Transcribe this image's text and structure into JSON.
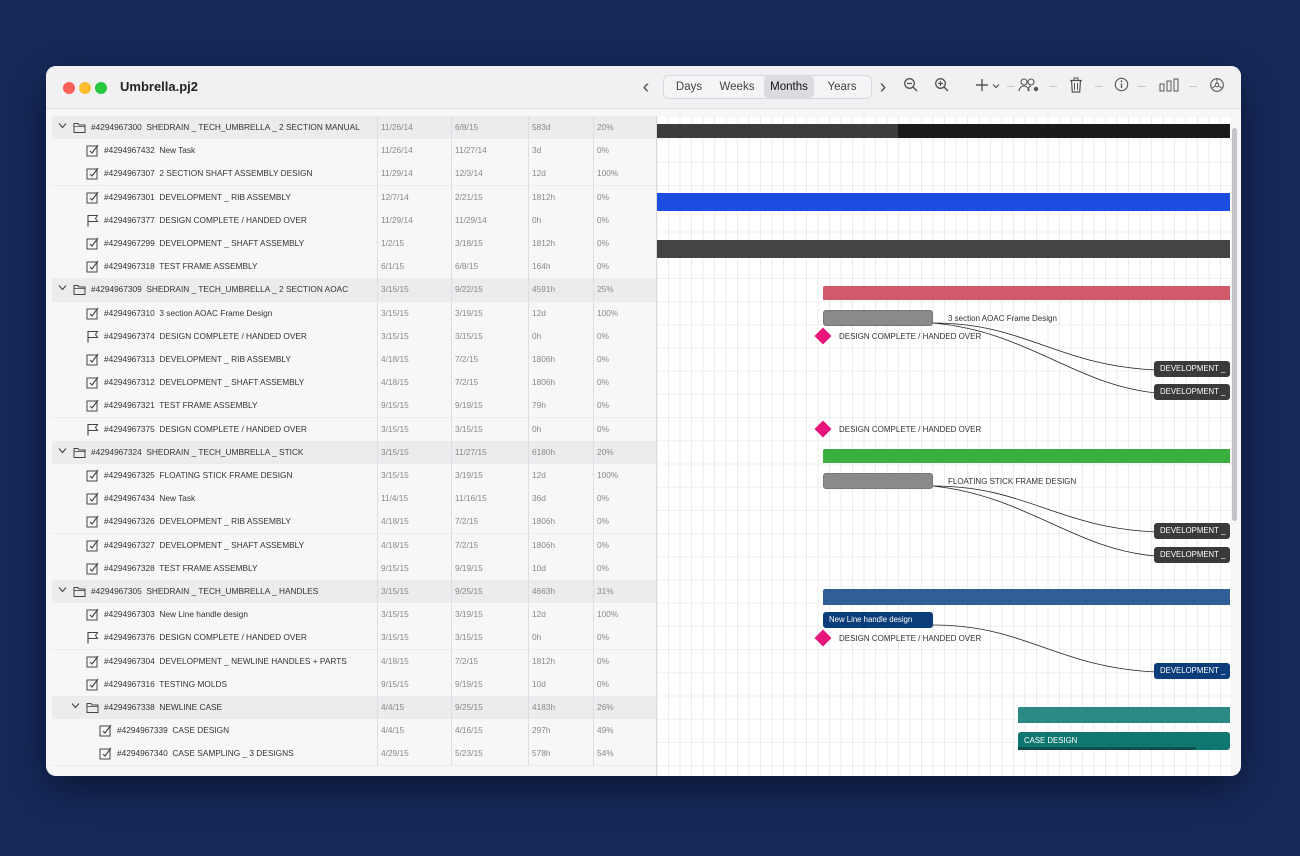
{
  "window": {
    "title": "Umbrella.pj2",
    "traffic_lights": {
      "close": "#fe5f57",
      "minimize": "#febc2e",
      "zoom": "#28c840"
    }
  },
  "toolbar": {
    "back": "‹",
    "forward": "›",
    "views": [
      "Days",
      "Weeks",
      "Months",
      "Years"
    ],
    "active_view": "Months",
    "icons": [
      "zoom-out-icon",
      "zoom-in-icon",
      "add-icon",
      "dropdown-icon",
      "resources-icon",
      "trash-icon",
      "info-icon",
      "chart-icon",
      "settings-icon"
    ]
  },
  "rows": [
    {
      "type": "group",
      "level": 0,
      "id": "#4294967300",
      "name": "SHEDRAIN _ TECH_UMBRELLA _ 2 SECTION  MANUAL",
      "start": "11/26/14",
      "end": "6/8/15",
      "duration": "583d",
      "progress": "20%"
    },
    {
      "type": "task",
      "level": 1,
      "id": "#4294967432",
      "name": "New Task",
      "start": "11/26/14",
      "end": "11/27/14",
      "duration": "3d",
      "progress": "0%"
    },
    {
      "type": "task",
      "level": 1,
      "id": "#4294967307",
      "name": "2 SECTION SHAFT ASSEMBLY DESIGN",
      "start": "11/29/14",
      "end": "12/3/14",
      "duration": "12d",
      "progress": "100%"
    },
    {
      "type": "task",
      "level": 1,
      "id": "#4294967301",
      "name": "DEVELOPMENT _ RIB ASSEMBLY",
      "start": "12/7/14",
      "end": "2/21/15",
      "duration": "1812h",
      "progress": "0%"
    },
    {
      "type": "milestone",
      "level": 1,
      "id": "#4294967377",
      "name": "DESIGN COMPLETE / HANDED OVER",
      "start": "11/29/14",
      "end": "11/29/14",
      "duration": "0h",
      "progress": "0%"
    },
    {
      "type": "task",
      "level": 1,
      "id": "#4294967299",
      "name": "DEVELOPMENT _ SHAFT ASSEMBLY",
      "start": "1/2/15",
      "end": "3/18/15",
      "duration": "1812h",
      "progress": "0%"
    },
    {
      "type": "task",
      "level": 1,
      "id": "#4294967318",
      "name": "TEST FRAME ASSEMBLY",
      "start": "6/1/15",
      "end": "6/8/15",
      "duration": "164h",
      "progress": "0%"
    },
    {
      "type": "group",
      "level": 0,
      "id": "#4294967309",
      "name": "SHEDRAIN _ TECH_UMBRELLA _ 2 SECTION AOAC",
      "start": "3/15/15",
      "end": "9/22/15",
      "duration": "4591h",
      "progress": "25%"
    },
    {
      "type": "task",
      "level": 1,
      "id": "#4294967310",
      "name": "3 section AOAC Frame Design",
      "start": "3/15/15",
      "end": "3/19/15",
      "duration": "12d",
      "progress": "100%"
    },
    {
      "type": "milestone",
      "level": 1,
      "id": "#4294967374",
      "name": "DESIGN COMPLETE / HANDED OVER",
      "start": "3/15/15",
      "end": "3/15/15",
      "duration": "0h",
      "progress": "0%"
    },
    {
      "type": "task",
      "level": 1,
      "id": "#4294967313",
      "name": "DEVELOPMENT _ RIB ASSEMBLY",
      "start": "4/18/15",
      "end": "7/2/15",
      "duration": "1806h",
      "progress": "0%"
    },
    {
      "type": "task",
      "level": 1,
      "id": "#4294967312",
      "name": "DEVELOPMENT _ SHAFT ASSEMBLY",
      "start": "4/18/15",
      "end": "7/2/15",
      "duration": "1806h",
      "progress": "0%"
    },
    {
      "type": "task",
      "level": 1,
      "id": "#4294967321",
      "name": "TEST FRAME ASSEMBLY",
      "start": "9/15/15",
      "end": "9/19/15",
      "duration": "79h",
      "progress": "0%"
    },
    {
      "type": "milestone",
      "level": 1,
      "id": "#4294967375",
      "name": "DESIGN COMPLETE / HANDED OVER",
      "start": "3/15/15",
      "end": "3/15/15",
      "duration": "0h",
      "progress": "0%"
    },
    {
      "type": "group",
      "level": 0,
      "id": "#4294967324",
      "name": "SHEDRAIN _ TECH_UMBRELLA _ STICK",
      "start": "3/15/15",
      "end": "11/27/15",
      "duration": "6180h",
      "progress": "20%"
    },
    {
      "type": "task",
      "level": 1,
      "id": "#4294967325",
      "name": "FLOATING STICK FRAME DESIGN",
      "start": "3/15/15",
      "end": "3/19/15",
      "duration": "12d",
      "progress": "100%"
    },
    {
      "type": "task",
      "level": 1,
      "id": "#4294967434",
      "name": "New Task",
      "start": "11/4/15",
      "end": "11/16/15",
      "duration": "36d",
      "progress": "0%"
    },
    {
      "type": "task",
      "level": 1,
      "id": "#4294967326",
      "name": "DEVELOPMENT _ RIB ASSEMBLY",
      "start": "4/18/15",
      "end": "7/2/15",
      "duration": "1806h",
      "progress": "0%"
    },
    {
      "type": "task",
      "level": 1,
      "id": "#4294967327",
      "name": "DEVELOPMENT _ SHAFT ASSEMBLY",
      "start": "4/18/15",
      "end": "7/2/15",
      "duration": "1806h",
      "progress": "0%"
    },
    {
      "type": "task",
      "level": 1,
      "id": "#4294967328",
      "name": "TEST FRAME ASSEMBLY",
      "start": "9/15/15",
      "end": "9/19/15",
      "duration": "10d",
      "progress": "0%"
    },
    {
      "type": "group",
      "level": 0,
      "id": "#4294967305",
      "name": "SHEDRAIN _ TECH_UMBRELLA _ HANDLES",
      "start": "3/15/15",
      "end": "9/25/15",
      "duration": "4663h",
      "progress": "31%"
    },
    {
      "type": "task",
      "level": 1,
      "id": "#4294967303",
      "name": "New Line handle design",
      "start": "3/15/15",
      "end": "3/19/15",
      "duration": "12d",
      "progress": "100%"
    },
    {
      "type": "milestone",
      "level": 1,
      "id": "#4294967376",
      "name": "DESIGN COMPLETE / HANDED OVER",
      "start": "3/15/15",
      "end": "3/15/15",
      "duration": "0h",
      "progress": "0%"
    },
    {
      "type": "task",
      "level": 1,
      "id": "#4294967304",
      "name": "DEVELOPMENT _ NEWLINE HANDLES + PARTS",
      "start": "4/18/15",
      "end": "7/2/15",
      "duration": "1812h",
      "progress": "0%"
    },
    {
      "type": "task",
      "level": 1,
      "id": "#4294967316",
      "name": "TESTING MOLDS",
      "start": "9/15/15",
      "end": "9/19/15",
      "duration": "10d",
      "progress": "0%"
    },
    {
      "type": "group",
      "level": 1,
      "id": "#4294967338",
      "name": "NEWLINE CASE",
      "start": "4/4/15",
      "end": "9/25/15",
      "duration": "4183h",
      "progress": "26%"
    },
    {
      "type": "task",
      "level": 2,
      "id": "#4294967339",
      "name": "CASE DESIGN",
      "start": "4/4/15",
      "end": "4/16/15",
      "duration": "297h",
      "progress": "49%"
    },
    {
      "type": "task",
      "level": 2,
      "id": "#4294967340",
      "name": "CASE SAMPLING _ 3 DESIGNS",
      "start": "4/29/15",
      "end": "5/23/15",
      "duration": "578h",
      "progress": "54%"
    }
  ],
  "gantt": {
    "labels": {
      "aoac_frame": "3 section AOAC Frame Design",
      "milestone": "DESIGN COMPLETE / HANDED OVER",
      "floating": "FLOATING STICK FRAME DESIGN",
      "handle_design": "New Line handle design",
      "development": "DEVELOPMENT _",
      "case_design": "CASE DESIGN"
    },
    "colors": {
      "manual_group": "#1e1e1e",
      "rib_assembly": "#1b4ee0",
      "shaft_assembly": "#444444",
      "aoac_group": "#d05a6a",
      "stick_group": "#3cae3e",
      "handles_group": "#305f96",
      "case_group": "#2c8a85",
      "task_gray": "#8a8a8a",
      "dev_dark": "#3a3a3a",
      "handle_navy": "#0b3d7a",
      "case_teal": "#107670",
      "milestone": "#e8157a"
    }
  }
}
